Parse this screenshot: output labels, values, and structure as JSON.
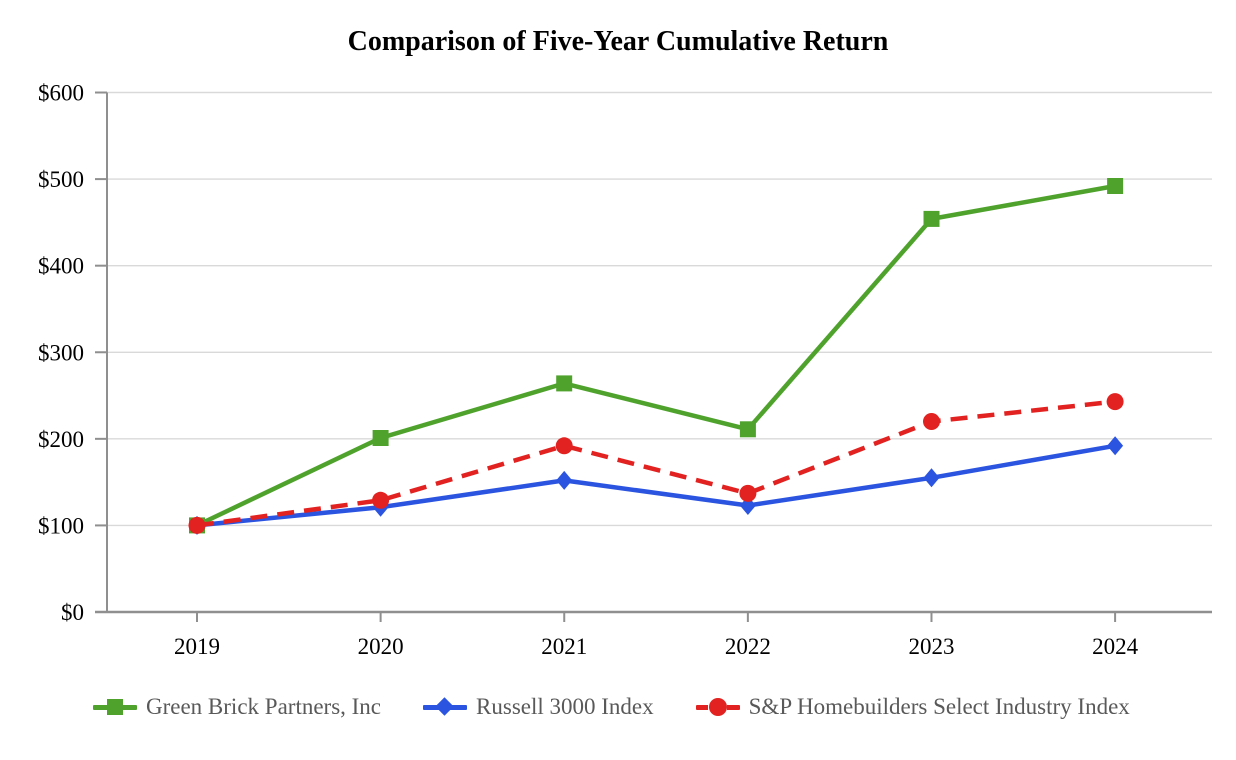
{
  "chart_data": {
    "type": "line",
    "title": "Comparison of Five-Year Cumulative Return",
    "categories": [
      "2019",
      "2020",
      "2021",
      "2022",
      "2023",
      "2024"
    ],
    "series": [
      {
        "id": "green-brick",
        "name": "Green Brick Partners, Inc",
        "color": "#4FA32D",
        "marker": "square",
        "line_style": "solid",
        "values": [
          100,
          201,
          264,
          211,
          454,
          492
        ]
      },
      {
        "id": "russell-3000",
        "name": "Russell 3000 Index",
        "color": "#2B54E0",
        "marker": "diamond",
        "line_style": "solid",
        "values": [
          100,
          121,
          152,
          123,
          155,
          192
        ]
      },
      {
        "id": "sp-homebuilders",
        "name": "S&P Homebuilders Select Industry Index",
        "color": "#E12220",
        "marker": "circle",
        "line_style": "dashed",
        "values": [
          100,
          129,
          192,
          137,
          220,
          243
        ]
      }
    ],
    "y_axis": {
      "ticks": [
        "$0",
        "$100",
        "$200",
        "$300",
        "$400",
        "$500",
        "$600"
      ],
      "min": 0,
      "max": 600,
      "step": 100,
      "prefix": "$"
    },
    "x_axis": {
      "ticks": [
        "2019",
        "2020",
        "2021",
        "2022",
        "2023",
        "2024"
      ]
    },
    "grid": "horizontal",
    "legend_position": "bottom",
    "colors": {
      "grid": "#d9d9d9",
      "axis": "#8f8f8f",
      "text": "#000000",
      "legend_text": "#595959",
      "background": "#ffffff"
    }
  }
}
